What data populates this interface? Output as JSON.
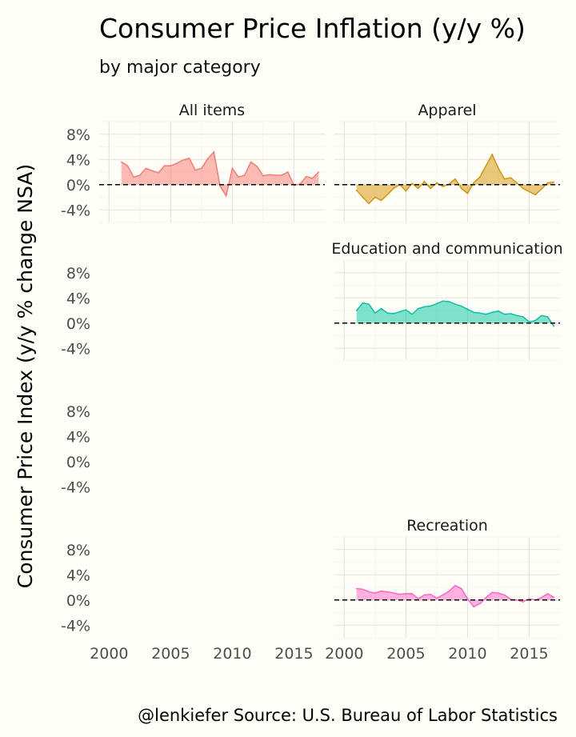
{
  "chart_data": {
    "type": "area",
    "title": "Consumer Price Inflation (y/y %)",
    "subtitle": "by major category",
    "ylabel": "Consumer Price Index (y/y % change NSA)",
    "caption": "@lenkiefer Source: U.S. Bureau of Labor Statistics",
    "xlim": [
      1999.2,
      2017.5
    ],
    "ylim": [
      -6,
      10
    ],
    "x_ticks": [
      2000,
      2005,
      2010,
      2015
    ],
    "x_tick_labels": [
      "2000",
      "2005",
      "2010",
      "2015"
    ],
    "y_ticks": [
      -4,
      0,
      4,
      8
    ],
    "y_tick_labels": [
      "-4%",
      "0%",
      "4%",
      "8%"
    ],
    "grid": true,
    "reference_line": 0,
    "panels": [
      {
        "name": "All items",
        "color": "#f8766d",
        "x": [
          2001.0,
          2001.5,
          2002.0,
          2002.5,
          2003.0,
          2003.5,
          2004.0,
          2004.5,
          2005.0,
          2005.5,
          2006.0,
          2006.5,
          2007.0,
          2007.5,
          2008.0,
          2008.5,
          2009.0,
          2009.5,
          2010.0,
          2010.5,
          2011.0,
          2011.5,
          2012.0,
          2012.5,
          2013.0,
          2013.5,
          2014.0,
          2014.5,
          2015.0,
          2015.5,
          2016.0,
          2016.5,
          2017.0
        ],
        "y": [
          3.6,
          3.0,
          1.2,
          1.5,
          2.6,
          2.2,
          1.9,
          3.0,
          3.0,
          3.4,
          3.9,
          4.2,
          2.3,
          2.6,
          4.1,
          5.2,
          -0.2,
          -1.8,
          2.6,
          1.2,
          1.5,
          3.6,
          2.9,
          1.4,
          1.6,
          1.5,
          1.5,
          2.0,
          -0.1,
          0.1,
          1.3,
          1.0,
          2.0
        ]
      },
      {
        "name": "Apparel",
        "color": "#d39200",
        "x": [
          2001.0,
          2001.5,
          2002.0,
          2002.5,
          2003.0,
          2003.5,
          2004.0,
          2004.5,
          2005.0,
          2005.5,
          2006.0,
          2006.5,
          2007.0,
          2007.5,
          2008.0,
          2008.5,
          2009.0,
          2009.5,
          2010.0,
          2010.5,
          2011.0,
          2011.5,
          2012.0,
          2012.5,
          2013.0,
          2013.5,
          2014.0,
          2014.5,
          2015.0,
          2015.5,
          2016.0,
          2016.5,
          2017.0
        ],
        "y": [
          -0.9,
          -2.0,
          -3.0,
          -2.0,
          -2.5,
          -1.6,
          -0.6,
          0.0,
          -1.0,
          0.2,
          -0.6,
          0.5,
          -0.6,
          0.3,
          -0.3,
          0.1,
          0.9,
          -0.6,
          -1.4,
          0.3,
          1.2,
          3.0,
          4.8,
          2.6,
          0.9,
          1.1,
          0.3,
          -0.6,
          -1.1,
          -1.6,
          -0.7,
          0.3,
          0.4
        ]
      },
      {
        "name": "Education and communication",
        "color": "#00c19f",
        "x": [
          2001.0,
          2001.5,
          2002.0,
          2002.5,
          2003.0,
          2003.5,
          2004.0,
          2004.5,
          2005.0,
          2005.5,
          2006.0,
          2006.5,
          2007.0,
          2007.5,
          2008.0,
          2008.5,
          2009.0,
          2009.5,
          2010.0,
          2010.5,
          2011.0,
          2011.5,
          2012.0,
          2012.5,
          2013.0,
          2013.5,
          2014.0,
          2014.5,
          2015.0,
          2015.5,
          2016.0,
          2016.5,
          2017.0
        ],
        "y": [
          2.0,
          3.2,
          3.0,
          1.6,
          2.3,
          1.6,
          1.5,
          1.8,
          2.1,
          1.4,
          2.3,
          2.6,
          2.7,
          3.1,
          3.5,
          3.4,
          3.0,
          2.7,
          2.2,
          1.7,
          1.6,
          1.4,
          1.7,
          1.9,
          1.4,
          1.5,
          1.2,
          1.0,
          0.2,
          0.4,
          1.2,
          1.0,
          -0.5
        ]
      },
      {
        "name": "Recreation",
        "color": "#ff61c3",
        "x": [
          2001.0,
          2001.5,
          2002.0,
          2002.5,
          2003.0,
          2003.5,
          2004.0,
          2004.5,
          2005.0,
          2005.5,
          2006.0,
          2006.5,
          2007.0,
          2007.5,
          2008.0,
          2008.5,
          2009.0,
          2009.5,
          2010.0,
          2010.5,
          2011.0,
          2011.5,
          2012.0,
          2012.5,
          2013.0,
          2013.5,
          2014.0,
          2014.5,
          2015.0,
          2015.5,
          2016.0,
          2016.5,
          2017.0
        ],
        "y": [
          1.8,
          1.7,
          1.3,
          1.1,
          1.4,
          1.3,
          1.1,
          0.9,
          1.0,
          1.0,
          0.2,
          0.8,
          0.9,
          0.3,
          0.8,
          1.4,
          2.3,
          1.8,
          0.2,
          -1.1,
          -0.6,
          0.4,
          1.2,
          1.1,
          0.8,
          0.1,
          0.0,
          -0.3,
          0.2,
          0.0,
          0.4,
          1.0,
          0.4
        ]
      }
    ]
  }
}
